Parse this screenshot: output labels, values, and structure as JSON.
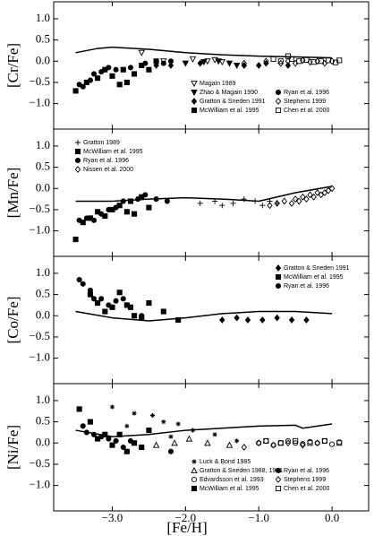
{
  "x_axis": {
    "label": "[Fe/H]",
    "xlim": [
      -3.8,
      0.5
    ],
    "xticks": [
      {
        "value": -3,
        "label": "−3.0"
      },
      {
        "value": -2,
        "label": "−2.0"
      },
      {
        "value": -1,
        "label": "−1.0"
      },
      {
        "value": 0,
        "label": "0.0"
      }
    ]
  },
  "y_axis": {
    "ylim": [
      -1.6,
      1.4
    ],
    "yticks": [
      {
        "value": -1,
        "label": "−1.0"
      },
      {
        "value": -0.5,
        "label": "−0.5"
      },
      {
        "value": 0,
        "label": "0.0"
      },
      0.5,
      {
        "value": 1,
        "label": "1.0"
      }
    ]
  },
  "chart_data": [
    {
      "type": "scatter",
      "ylabel": "[Cr/Fe]",
      "model": {
        "x": [
          -3.5,
          -3.2,
          -3,
          -2.5,
          -2,
          -1.5,
          -1,
          -0.5,
          0
        ],
        "y": [
          0.2,
          0.3,
          0.33,
          0.28,
          0.2,
          0.15,
          0.12,
          0.1,
          0.08
        ]
      },
      "series": [
        {
          "name": "Magain 1989",
          "marker": "tri-down-open",
          "color": "#000",
          "x": [
            -2.6,
            -2.3,
            -1.9,
            -1.7,
            -1.6,
            -1.5
          ],
          "y": [
            0.2,
            0.0,
            0.05,
            0.0,
            0.03,
            -0.02
          ]
        },
        {
          "name": "Zhao & Magain 1990",
          "marker": "tri-down",
          "color": "#000",
          "x": [
            -2.0,
            -1.75,
            -1.55,
            -1.4,
            -1.3
          ],
          "y": [
            -0.05,
            -0.02,
            0.0,
            -0.05,
            -0.1
          ]
        },
        {
          "name": "Gratton & Sneden 1991",
          "marker": "diamond",
          "color": "#000",
          "x": [
            -2.4,
            -2.2,
            -1.8,
            -1.2,
            -1.0,
            -0.9,
            -0.6
          ],
          "y": [
            -0.1,
            -0.1,
            -0.05,
            -0.1,
            -0.1,
            -0.05,
            -0.1
          ]
        },
        {
          "name": "McWilliam et al. 1995",
          "marker": "square",
          "color": "#000",
          "x": [
            -3.5,
            -3.35,
            -3.2,
            -3.1,
            -3.0,
            -2.9,
            -2.85,
            -2.8,
            -2.7,
            -2.6,
            -2.5,
            -2.4
          ],
          "y": [
            -0.7,
            -0.5,
            -0.4,
            -0.2,
            -0.35,
            -0.55,
            -0.2,
            -0.5,
            -0.3,
            -0.1,
            -0.2,
            0.0
          ]
        },
        {
          "name": "Ryan et al. 1996",
          "marker": "circle",
          "color": "#000",
          "x": [
            -3.45,
            -3.4,
            -3.3,
            -3.25,
            -3.15,
            -3.05,
            -2.95,
            -2.75,
            -2.55,
            -2.3,
            -2.2
          ],
          "y": [
            -0.55,
            -0.6,
            -0.45,
            -0.3,
            -0.25,
            -0.15,
            -0.2,
            -0.15,
            -0.05,
            -0.05,
            0.0
          ]
        },
        {
          "name": "Stephens 1999",
          "marker": "diamond-open",
          "color": "#000",
          "x": [
            -1.2,
            -0.9,
            -0.7,
            -0.6,
            -0.5,
            -0.4,
            -0.3,
            -0.2,
            -0.1,
            0.0
          ],
          "y": [
            -0.05,
            0.0,
            -0.05,
            0.0,
            -0.05,
            0.02,
            -0.02,
            0.0,
            -0.05,
            0.0
          ]
        },
        {
          "name": "Chen et al. 2000",
          "marker": "square-open",
          "color": "#000",
          "x": [
            -0.8,
            -0.7,
            -0.6,
            -0.55,
            -0.45,
            -0.35,
            -0.25,
            -0.15,
            -0.05,
            0.05,
            0.1
          ],
          "y": [
            0.05,
            0.0,
            0.12,
            0.05,
            0.0,
            0.03,
            -0.02,
            0.0,
            0.02,
            -0.03,
            0.02
          ]
        }
      ]
    },
    {
      "type": "scatter",
      "ylabel": "[Mn/Fe]",
      "model": {
        "x": [
          -3.5,
          -3,
          -2.5,
          -2,
          -1.5,
          -1,
          -0.5,
          0
        ],
        "y": [
          -0.3,
          -0.3,
          -0.25,
          -0.22,
          -0.25,
          -0.3,
          -0.1,
          0.05
        ]
      },
      "series": [
        {
          "name": "Gratton 1989",
          "marker": "plus",
          "color": "#000",
          "x": [
            -1.8,
            -1.6,
            -1.5,
            -1.35,
            -1.2,
            -1.05,
            -0.95,
            -0.85,
            -0.75
          ],
          "y": [
            -0.35,
            -0.3,
            -0.4,
            -0.35,
            -0.25,
            -0.3,
            -0.4,
            -0.3,
            -0.35
          ]
        },
        {
          "name": "McWilliam et al. 1995",
          "marker": "square",
          "color": "#000",
          "x": [
            -3.5,
            -3.4,
            -3.3,
            -3.2,
            -3.1,
            -3.0,
            -2.9,
            -2.8,
            -2.75,
            -2.7,
            -2.6,
            -2.5
          ],
          "y": [
            -1.2,
            -0.8,
            -0.7,
            -0.55,
            -0.65,
            -0.5,
            -0.4,
            -0.55,
            -0.3,
            -0.6,
            -0.2,
            -0.45
          ]
        },
        {
          "name": "Ryan et al. 1996",
          "marker": "circle",
          "color": "#000",
          "x": [
            -3.45,
            -3.35,
            -3.25,
            -3.15,
            -3.05,
            -2.95,
            -2.85,
            -2.65,
            -2.55,
            -2.4,
            -2.25
          ],
          "y": [
            -0.75,
            -0.7,
            -0.75,
            -0.6,
            -0.5,
            -0.45,
            -0.3,
            -0.25,
            -0.15,
            -0.25,
            -0.3
          ]
        },
        {
          "name": "Nissen et al. 2000",
          "marker": "diamond-open",
          "color": "#000",
          "x": [
            -0.85,
            -0.75,
            -0.65,
            -0.55,
            -0.5,
            -0.45,
            -0.4,
            -0.35,
            -0.3,
            -0.25,
            -0.2,
            -0.15,
            -0.1,
            -0.05,
            0.0
          ],
          "y": [
            -0.4,
            -0.35,
            -0.3,
            -0.35,
            -0.25,
            -0.3,
            -0.2,
            -0.25,
            -0.15,
            -0.2,
            -0.1,
            -0.15,
            -0.1,
            -0.05,
            0.0
          ]
        }
      ]
    },
    {
      "type": "scatter",
      "ylabel": "[Co/Fe]",
      "model": {
        "x": [
          -3.5,
          -3,
          -2.5,
          -2,
          -1.5,
          -1,
          -0.5,
          0
        ],
        "y": [
          0.1,
          -0.05,
          -0.12,
          -0.05,
          0.05,
          0.1,
          0.1,
          0.05
        ]
      },
      "series": [
        {
          "name": "Gratton & Sneden 1991",
          "marker": "diamond",
          "color": "#000",
          "x": [
            -1.5,
            -1.3,
            -1.15,
            -0.95,
            -0.75,
            -0.55,
            -0.35
          ],
          "y": [
            -0.1,
            -0.05,
            -0.1,
            -0.1,
            -0.05,
            -0.1,
            -0.1
          ]
        },
        {
          "name": "McWilliam et al. 1995",
          "marker": "square",
          "color": "#000",
          "x": [
            -3.3,
            -3.2,
            -3.1,
            -3.0,
            -2.9,
            -2.8,
            -2.75,
            -2.7,
            -2.6,
            -2.5,
            -2.3,
            -2.1
          ],
          "y": [
            0.5,
            0.3,
            0.1,
            0.2,
            0.55,
            0.25,
            0.2,
            0.0,
            -0.05,
            0.3,
            0.1,
            -0.1
          ]
        },
        {
          "name": "Ryan et al. 1996",
          "marker": "circle",
          "color": "#000",
          "x": [
            -3.45,
            -3.4,
            -3.3,
            -3.25,
            -3.15,
            -3.05,
            -2.95,
            -2.85,
            -2.6
          ],
          "y": [
            0.85,
            0.75,
            0.6,
            0.4,
            0.4,
            0.25,
            0.35,
            0.4,
            0.0
          ]
        }
      ]
    },
    {
      "type": "scatter",
      "ylabel": "[Ni/Fe]",
      "model": {
        "x": [
          -3.5,
          -3,
          -2.5,
          -2,
          -1.5,
          -1,
          -0.5,
          -0.4,
          0
        ],
        "y": [
          0.3,
          0.15,
          0.2,
          0.3,
          0.35,
          0.4,
          0.42,
          0.35,
          0.45
        ]
      },
      "series": [
        {
          "name": "Luck & Bond 1985",
          "marker": "asterisk",
          "color": "#000",
          "x": [
            -3.0,
            -2.8,
            -2.7,
            -2.45,
            -2.3,
            -2.2,
            -2.1,
            -1.9,
            -1.6,
            -1.3
          ],
          "y": [
            0.85,
            0.4,
            0.7,
            0.65,
            0.5,
            0.15,
            0.45,
            0.3,
            0.2,
            0.05
          ]
        },
        {
          "name": "Gratton & Sneden 1988, 1991",
          "marker": "tri-up-open",
          "color": "#000",
          "x": [
            -2.4,
            -2.15,
            -1.95,
            -1.7,
            -1.4
          ],
          "y": [
            -0.05,
            0.0,
            0.1,
            0.0,
            -0.05
          ]
        },
        {
          "name": "Edvardsson et al. 1993",
          "marker": "circle-open",
          "color": "#000",
          "x": [
            -1.0,
            -0.9,
            -0.8,
            -0.7,
            -0.6,
            -0.5,
            -0.4,
            -0.3,
            -0.2,
            -0.1,
            0.0,
            0.1
          ],
          "y": [
            0.0,
            0.05,
            -0.05,
            0.0,
            0.05,
            0.0,
            -0.02,
            0.03,
            0.0,
            0.05,
            -0.03,
            0.02
          ]
        },
        {
          "name": "McWilliam et al. 1995",
          "marker": "square",
          "color": "#000",
          "x": [
            -3.45,
            -3.3,
            -3.2,
            -3.1,
            -3.0,
            -2.9,
            -2.8,
            -2.7,
            -2.6,
            -2.5
          ],
          "y": [
            0.8,
            0.5,
            0.1,
            0.2,
            -0.05,
            0.2,
            -0.2,
            0.0,
            -0.1,
            0.3
          ]
        },
        {
          "name": "Ryan et al. 1996",
          "marker": "circle",
          "color": "#000",
          "x": [
            -3.4,
            -3.35,
            -3.25,
            -3.15,
            -3.05,
            -2.95,
            -2.85,
            -2.75,
            -2.2
          ],
          "y": [
            0.4,
            0.25,
            0.2,
            0.15,
            0.1,
            0.05,
            -0.1,
            0.05,
            -0.2
          ]
        },
        {
          "name": "Stephens 1999",
          "marker": "diamond-open",
          "color": "#000",
          "x": [
            -1.2,
            -1.0,
            -0.8,
            -0.6,
            -0.4,
            -0.2
          ],
          "y": [
            -0.1,
            0.0,
            -0.05,
            0.0,
            -0.05,
            0.0
          ]
        },
        {
          "name": "Chen et al. 2000",
          "marker": "square-open",
          "color": "#000",
          "x": [
            -0.9,
            -0.7,
            -0.5,
            -0.3,
            -0.1,
            0.1
          ],
          "y": [
            0.05,
            0.0,
            0.05,
            0.0,
            0.05,
            0.0
          ]
        }
      ]
    }
  ]
}
